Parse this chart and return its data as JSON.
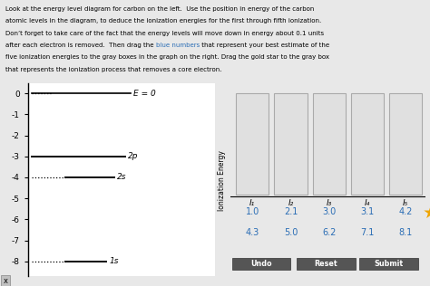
{
  "bg_color": "#e8e8e8",
  "title_bg": "#ffffff",
  "title_border": "#bbbbbb",
  "title_lines": [
    "Look at the energy level diagram for carbon on the left.  Use the position in energy of the carbon",
    "atomic levels in the diagram, to deduce the ionization energies for the first through fifth ionization.",
    "Don’t forget to take care of the fact that the energy levels will move down in energy about 0.1 units",
    "after each electron is removed.  Then drag the blue numbers that represent your best estimate of the",
    "five ionization energies to the gray boxes in the graph on the right. Drag the gold star to the gray box",
    "that represents the ionization process that removes a core electron."
  ],
  "blue_word_line": 3,
  "blue_word_start": "after each electron is removed.  Then drag the ",
  "blue_word": "blue numbers",
  "blue_word_end": " that represent your best estimate of the",
  "blue_color": "#2a6db5",
  "panel_bg": "#ffffff",
  "yticks": [
    0,
    -1,
    -2,
    -3,
    -4,
    -5,
    -6,
    -7,
    -8
  ],
  "ylim": [
    -8.7,
    0.5
  ],
  "xlim": [
    0,
    10
  ],
  "e0_y": 0.0,
  "e0_x_start": 0.2,
  "e0_x_end": 5.5,
  "e0_label": "E = 0",
  "e0_dotted_x_end": 0.2,
  "level_2p_y": -3.0,
  "level_2p_x_start": 0.2,
  "level_2p_x_end": 5.2,
  "level_2p_label": "2p",
  "level_2s_y": -4.0,
  "level_2s_x_start": 2.0,
  "level_2s_x_end": 4.6,
  "level_2s_label": "2s",
  "level_2s_dot_x_start": 0.2,
  "level_2s_dot_x_end": 2.0,
  "level_1s_y": -8.0,
  "level_1s_x_start": 2.0,
  "level_1s_x_end": 4.2,
  "level_1s_label": "1s",
  "level_1s_dot_x_start": 0.2,
  "level_1s_dot_x_end": 2.0,
  "e0_dot_x_start": 0.2,
  "e0_dot_x_end": 1.2,
  "ionization_labels": [
    "I₁",
    "I₂",
    "I₃",
    "I₄",
    "I₅"
  ],
  "ylabel_right": "Ionization Energy",
  "box_facecolor": "#e0e0e0",
  "box_edgecolor": "#aaaaaa",
  "blue_row1": [
    "1.0",
    "2.1",
    "3.0",
    "3.1",
    "4.2"
  ],
  "blue_row2": [
    "4.3",
    "5.0",
    "6.2",
    "7.1",
    "8.1"
  ],
  "star_color": "#f0a500",
  "star_unicode": "★",
  "btn_labels": [
    "Undo",
    "Reset",
    "Submit"
  ],
  "btn_bg": "#555555",
  "btn_text_color": "#ffffff"
}
